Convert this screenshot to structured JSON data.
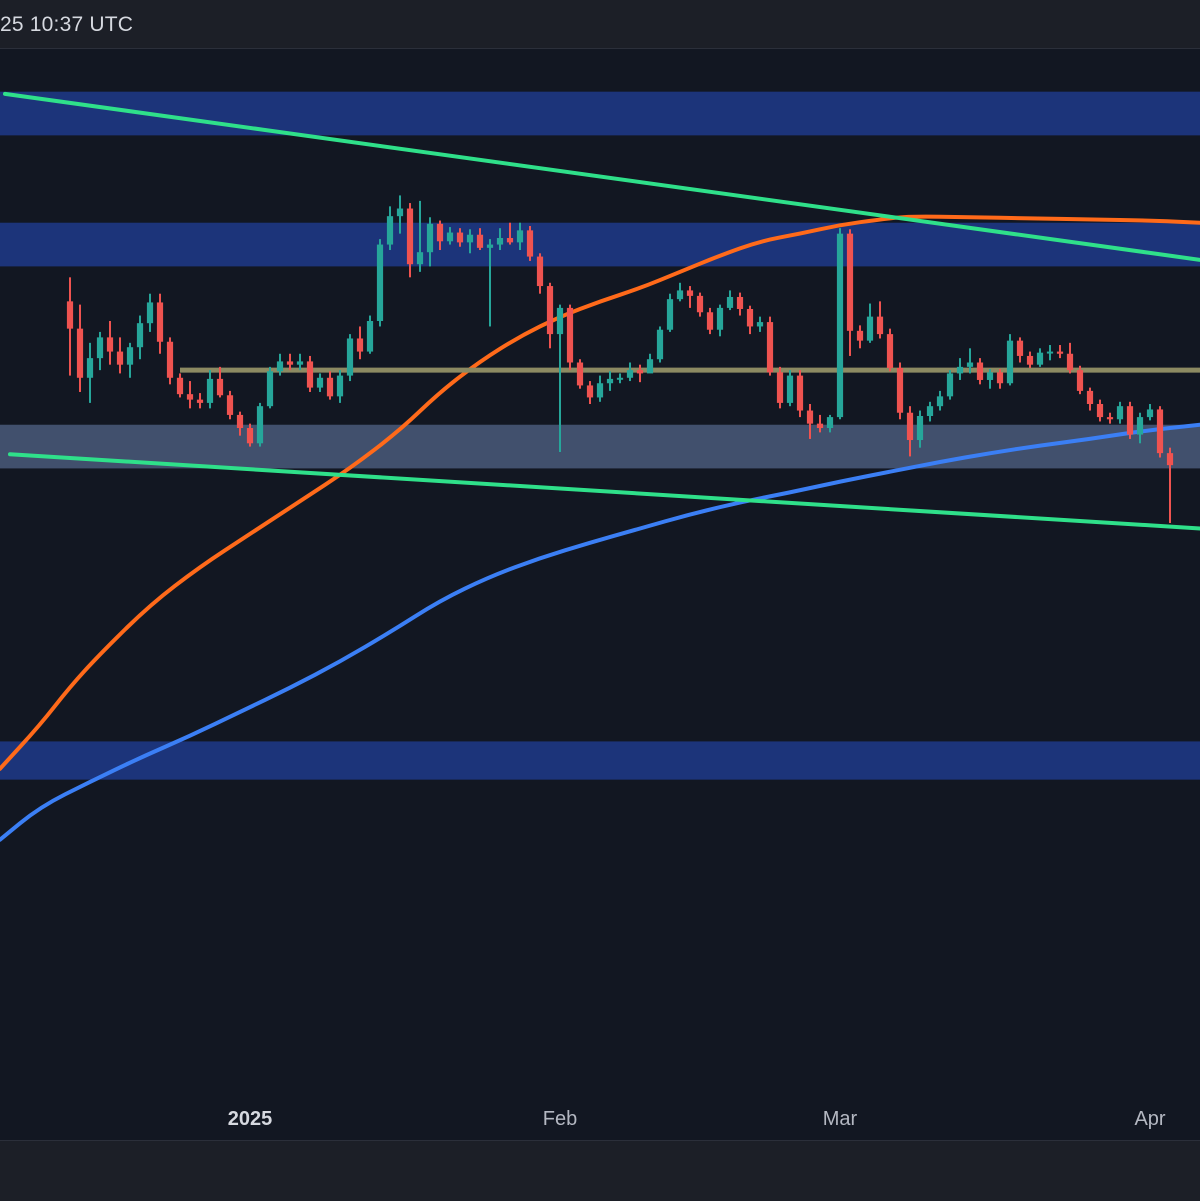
{
  "header": {
    "timestamp": "25 10:37 UTC"
  },
  "colors": {
    "background": "#121722",
    "bull": "#26a69a",
    "bear": "#ef5350",
    "ma_orange": "#ff6a1a",
    "ma_blue": "#3b7ff5",
    "trendline": "#2fe08a",
    "resistance_zone": "#1f3a8a",
    "support_zone": "#4a5a7a",
    "level_line": "#8c8a62"
  },
  "chart_data": {
    "type": "candlestick",
    "title": "",
    "xlabel": "",
    "ylabel": "",
    "x_tick_labels": [
      {
        "label": "2025",
        "index": 18,
        "bold": true
      },
      {
        "label": "Feb",
        "index": 49,
        "bold": false
      },
      {
        "label": "Mar",
        "index": 77,
        "bold": false
      },
      {
        "label": "Apr",
        "index": 108,
        "bold": false
      }
    ],
    "index_range": [
      -7,
      113
    ],
    "price_range": [
      0,
      100
    ],
    "grid": false,
    "candles": [
      [
        76.8,
        79,
        70,
        74.3
      ],
      [
        74.3,
        76.5,
        68.5,
        69.8
      ],
      [
        69.8,
        73,
        67.5,
        71.6
      ],
      [
        71.6,
        74,
        70.5,
        73.5
      ],
      [
        73.5,
        75,
        71,
        72.2
      ],
      [
        72.2,
        73.5,
        70.2,
        71.0
      ],
      [
        71.0,
        73,
        69.8,
        72.6
      ],
      [
        72.6,
        75.5,
        71.5,
        74.8
      ],
      [
        74.8,
        77.5,
        74,
        76.7
      ],
      [
        76.7,
        77.5,
        72,
        73.1
      ],
      [
        73.1,
        73.5,
        69.2,
        69.8
      ],
      [
        69.8,
        70.2,
        68,
        68.3
      ],
      [
        68.3,
        69.5,
        67,
        67.8
      ],
      [
        67.8,
        68.4,
        67,
        67.5
      ],
      [
        67.5,
        70.5,
        67,
        69.7
      ],
      [
        69.7,
        70.8,
        68,
        68.2
      ],
      [
        68.2,
        68.6,
        66,
        66.4
      ],
      [
        66.4,
        66.7,
        64.5,
        65.2
      ],
      [
        65.2,
        65.6,
        63.5,
        63.8
      ],
      [
        63.8,
        67.5,
        63.5,
        67.2
      ],
      [
        67.2,
        70.8,
        67,
        70.4
      ],
      [
        70.4,
        72,
        70,
        71.3
      ],
      [
        71.3,
        72,
        70.5,
        71.0
      ],
      [
        71.0,
        72.0,
        70.5,
        71.3
      ],
      [
        71.3,
        71.8,
        68.5,
        68.9
      ],
      [
        68.9,
        70.2,
        68.5,
        69.8
      ],
      [
        69.8,
        70.4,
        67.8,
        68.1
      ],
      [
        68.1,
        70.5,
        67.5,
        70.0
      ],
      [
        70.0,
        73.8,
        69.5,
        73.4
      ],
      [
        73.4,
        74.5,
        71.5,
        72.2
      ],
      [
        72.2,
        75.5,
        72,
        75.0
      ],
      [
        75.0,
        82.5,
        74.5,
        82.0
      ],
      [
        82.0,
        85.5,
        81.5,
        84.6
      ],
      [
        84.6,
        86.5,
        83,
        85.3
      ],
      [
        85.3,
        85.8,
        79,
        80.2
      ],
      [
        80.2,
        86,
        79.5,
        81.3
      ],
      [
        81.3,
        84.5,
        80,
        83.9
      ],
      [
        83.9,
        84.2,
        81.5,
        82.3
      ],
      [
        82.3,
        83.6,
        82,
        83.1
      ],
      [
        83.1,
        83.5,
        81.8,
        82.2
      ],
      [
        82.2,
        83.4,
        81.2,
        82.9
      ],
      [
        82.9,
        83.5,
        81.5,
        81.7
      ],
      [
        81.7,
        82.5,
        74.5,
        82.0
      ],
      [
        82.0,
        83.5,
        81.5,
        82.6
      ],
      [
        82.6,
        84,
        82,
        82.2
      ],
      [
        82.2,
        84,
        81.5,
        83.3
      ],
      [
        83.3,
        83.7,
        80.5,
        80.9
      ],
      [
        80.9,
        81.2,
        77.5,
        78.2
      ],
      [
        78.2,
        78.5,
        72.5,
        73.8
      ],
      [
        73.8,
        76.5,
        63,
        76.2
      ],
      [
        76.2,
        76.5,
        70.5,
        71.2
      ],
      [
        71.2,
        71.5,
        68.8,
        69.1
      ],
      [
        69.1,
        69.5,
        67.4,
        68.0
      ],
      [
        68.0,
        70,
        67.6,
        69.3
      ],
      [
        69.3,
        70.4,
        68.6,
        69.7
      ],
      [
        69.7,
        70.2,
        69.3,
        69.8
      ],
      [
        69.8,
        71.2,
        69.5,
        70.5
      ],
      [
        70.5,
        71.0,
        69.4,
        70.2
      ],
      [
        70.2,
        72,
        70.5,
        71.5
      ],
      [
        71.5,
        74.5,
        71.2,
        74.2
      ],
      [
        74.2,
        77.5,
        74,
        77.0
      ],
      [
        77.0,
        78.5,
        76.8,
        77.8
      ],
      [
        77.8,
        78.2,
        76.2,
        77.3
      ],
      [
        77.3,
        77.6,
        75.4,
        75.8
      ],
      [
        75.8,
        76.2,
        73.8,
        74.2
      ],
      [
        74.2,
        76.5,
        73.6,
        76.2
      ],
      [
        76.2,
        77.8,
        76,
        77.2
      ],
      [
        77.2,
        77.6,
        75.5,
        76.1
      ],
      [
        76.1,
        76.4,
        73.8,
        74.5
      ],
      [
        74.5,
        75.4,
        74,
        74.9
      ],
      [
        74.9,
        75.4,
        70,
        70.3
      ],
      [
        70.3,
        70.8,
        67,
        67.5
      ],
      [
        67.5,
        70.5,
        67.2,
        70.0
      ],
      [
        70.0,
        70.5,
        66.2,
        66.8
      ],
      [
        66.8,
        67.4,
        64.2,
        65.6
      ],
      [
        65.6,
        66.4,
        64.8,
        65.2
      ],
      [
        65.2,
        66.4,
        64.8,
        66.2
      ],
      [
        66.2,
        83.5,
        66,
        83.0
      ],
      [
        83.0,
        83.4,
        71.8,
        74.1
      ],
      [
        74.1,
        74.6,
        72.5,
        73.2
      ],
      [
        73.2,
        76.6,
        73,
        75.4
      ],
      [
        75.4,
        76.8,
        73.4,
        73.8
      ],
      [
        73.8,
        74.3,
        70.4,
        70.7
      ],
      [
        70.7,
        71.2,
        66,
        66.6
      ],
      [
        66.6,
        67.2,
        62.6,
        64.1
      ],
      [
        64.1,
        66.8,
        63.4,
        66.3
      ],
      [
        66.3,
        67.6,
        65.8,
        67.2
      ],
      [
        67.2,
        68.6,
        66.8,
        68.1
      ],
      [
        68.1,
        70.5,
        67.8,
        70.2
      ],
      [
        70.2,
        71.6,
        69.6,
        70.8
      ],
      [
        70.8,
        72.5,
        70.2,
        71.2
      ],
      [
        71.2,
        71.6,
        69.2,
        69.6
      ],
      [
        69.6,
        70.6,
        68.8,
        70.3
      ],
      [
        70.3,
        70.6,
        68.8,
        69.3
      ],
      [
        69.3,
        73.8,
        69.1,
        73.2
      ],
      [
        73.2,
        73.5,
        71.2,
        71.8
      ],
      [
        71.8,
        72.2,
        70.7,
        71.0
      ],
      [
        71.0,
        72.5,
        70.8,
        72.1
      ],
      [
        72.1,
        72.8,
        71.4,
        72.2
      ],
      [
        72.2,
        72.8,
        71.6,
        72.0
      ],
      [
        72.0,
        73.0,
        70.2,
        70.5
      ],
      [
        70.5,
        70.9,
        68.3,
        68.6
      ],
      [
        68.6,
        68.9,
        66.8,
        67.4
      ],
      [
        67.4,
        67.8,
        65.8,
        66.2
      ],
      [
        66.2,
        66.6,
        65.6,
        66.0
      ],
      [
        66.0,
        67.6,
        65.6,
        67.2
      ],
      [
        67.2,
        67.6,
        64.2,
        64.6
      ],
      [
        64.6,
        66.6,
        63.8,
        66.2
      ],
      [
        66.2,
        67.4,
        65.9,
        66.9
      ],
      [
        66.9,
        67.2,
        62.5,
        62.9
      ],
      [
        62.9,
        63.4,
        56.5,
        61.8
      ]
    ],
    "zones": [
      {
        "name": "resistance-zone-top",
        "from": 92,
        "to": 96,
        "color": "#1f3a8a"
      },
      {
        "name": "resistance-zone-mid",
        "from": 80,
        "to": 84,
        "color": "#1f3a8a"
      },
      {
        "name": "support-zone",
        "from": 61.5,
        "to": 65.5,
        "color": "#4a5a7a"
      },
      {
        "name": "lower-demand-zone",
        "from": 33,
        "to": 36.5,
        "color": "#1f3a8a"
      }
    ],
    "levels": [
      {
        "name": "horizontal-level",
        "value": 70.5,
        "from": 11,
        "to": 113,
        "color": "#8c8a62"
      }
    ],
    "trendlines": [
      {
        "name": "upper-trendline",
        "from": [
          -6.5,
          95.8
        ],
        "to": [
          113,
          80.6
        ],
        "color": "#2fe08a"
      },
      {
        "name": "lower-trendline",
        "from": [
          -6,
          62.8
        ],
        "to": [
          113,
          56.0
        ],
        "color": "#2fe08a"
      }
    ],
    "moving_averages": [
      {
        "name": "orange-ma",
        "color": "#ff6a1a",
        "points": [
          [
            -7,
            34
          ],
          [
            -3,
            38
          ],
          [
            0,
            41.5
          ],
          [
            3,
            44.5
          ],
          [
            8,
            49
          ],
          [
            13,
            52.5
          ],
          [
            18,
            55.5
          ],
          [
            23,
            58.5
          ],
          [
            28,
            61.5
          ],
          [
            33,
            65
          ],
          [
            37,
            68.5
          ],
          [
            41,
            71.3
          ],
          [
            45,
            73.6
          ],
          [
            49,
            75.4
          ],
          [
            53,
            76.8
          ],
          [
            57,
            78.0
          ],
          [
            61,
            79.5
          ],
          [
            65,
            81.0
          ],
          [
            69,
            82.3
          ],
          [
            73,
            83.0
          ],
          [
            77,
            83.8
          ],
          [
            81,
            84.3
          ],
          [
            84,
            84.6
          ],
          [
            90,
            84.5
          ],
          [
            96,
            84.4
          ],
          [
            102,
            84.3
          ],
          [
            108,
            84.2
          ],
          [
            113,
            84.0
          ]
        ]
      },
      {
        "name": "blue-ma",
        "color": "#3b7ff5",
        "points": [
          [
            -7,
            27.5
          ],
          [
            -3,
            30.5
          ],
          [
            2,
            32.8
          ],
          [
            7,
            35.0
          ],
          [
            12,
            37.0
          ],
          [
            17,
            39.2
          ],
          [
            22,
            41.4
          ],
          [
            27,
            43.8
          ],
          [
            32,
            46.5
          ],
          [
            37,
            49.4
          ],
          [
            42,
            51.6
          ],
          [
            47,
            53.3
          ],
          [
            52,
            54.7
          ],
          [
            57,
            56.0
          ],
          [
            62,
            57.3
          ],
          [
            67,
            58.4
          ],
          [
            72,
            59.3
          ],
          [
            77,
            60.3
          ],
          [
            82,
            61.2
          ],
          [
            87,
            62.1
          ],
          [
            92,
            62.9
          ],
          [
            97,
            63.6
          ],
          [
            102,
            64.2
          ],
          [
            107,
            64.9
          ],
          [
            113,
            65.5
          ]
        ]
      }
    ]
  }
}
